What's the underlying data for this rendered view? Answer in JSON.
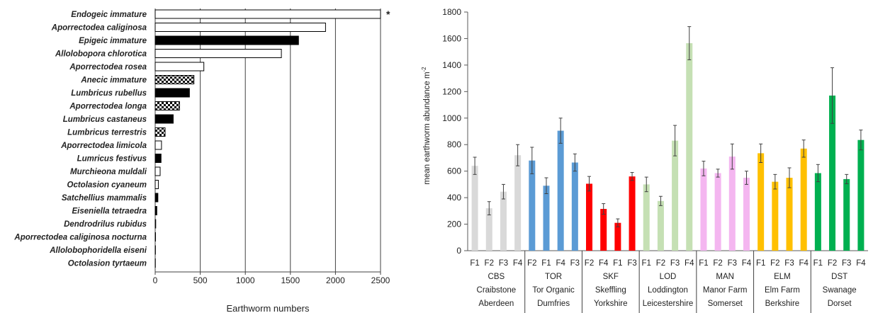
{
  "chart_data": [
    {
      "type": "bar",
      "orientation": "horizontal",
      "categories": [
        "Endogeic immature",
        "Aporrectodea caliginosa",
        "Epigeic immature",
        "Allolobopora chlorotica",
        "Aporrectodea rosea",
        "Anecic immature",
        "Lumbricus rubellus",
        "Aporrectodea longa",
        "Lumbricus castaneus",
        "Lumbricus terrestris",
        "Aporrectodea limicola",
        "Lumricus festivus",
        "Murchieona muldali",
        "Octolasion cyaneum",
        "Satchellius mammalis",
        "Eiseniella tetraedra",
        "Dendrodrilus rubidus",
        "Aporrectodea caliginosa nocturna",
        "Allolobophoridella eiseni",
        "Octolasion tyrtaeum"
      ],
      "values": [
        2500,
        1890,
        1590,
        1400,
        540,
        430,
        380,
        270,
        200,
        110,
        70,
        65,
        55,
        35,
        30,
        18,
        6,
        4,
        3,
        2
      ],
      "styles": [
        "white",
        "white",
        "black",
        "white",
        "white",
        "checker",
        "black",
        "checker",
        "black",
        "checker",
        "white",
        "black",
        "white",
        "white",
        "black",
        "black",
        "white",
        "white",
        "white",
        "white"
      ],
      "xlabel": "Earthworm numbers",
      "xlim": [
        0,
        2500
      ],
      "xticks": [
        "0",
        "500",
        "1000",
        "1500",
        "2000",
        "2500"
      ],
      "annotation": "*",
      "grid": "vertical"
    },
    {
      "type": "bar",
      "ylabel": "mean earthworm  abundance  m",
      "ylabel_superscript": "-2",
      "ylim": [
        0,
        1800
      ],
      "yticks": [
        "0",
        "200",
        "400",
        "600",
        "800",
        "1000",
        "1200",
        "1400",
        "1600",
        "1800"
      ],
      "groups": [
        {
          "code": "CBS",
          "name": "Craibstone",
          "region": "Aberdeen",
          "color": "#d9d9d9",
          "fields": [
            "F1",
            "F2",
            "F3",
            "F4"
          ],
          "values": [
            640,
            320,
            445,
            720
          ],
          "errors": [
            65,
            50,
            55,
            80
          ]
        },
        {
          "code": "TOR",
          "name": "Tor Organic",
          "region": "Dumfries",
          "color": "#5b9bd5",
          "fields": [
            "F2",
            "F1",
            "F4",
            "F3"
          ],
          "values": [
            680,
            490,
            905,
            665
          ],
          "errors": [
            100,
            60,
            95,
            65
          ]
        },
        {
          "code": "SKF",
          "name": "Skeffling",
          "region": "Yorkshire",
          "color": "#ff0000",
          "fields": [
            "F2",
            "F4",
            "F1",
            "F3"
          ],
          "values": [
            505,
            315,
            210,
            560
          ],
          "errors": [
            55,
            40,
            30,
            30
          ]
        },
        {
          "code": "LOD",
          "name": "Loddington",
          "region": "Leicestershire",
          "color": "#c5e0b4",
          "fields": [
            "F1",
            "F2",
            "F3",
            "F4"
          ],
          "values": [
            500,
            375,
            830,
            1565
          ],
          "errors": [
            55,
            35,
            115,
            125
          ]
        },
        {
          "code": "MAN",
          "name": "Manor Farm",
          "region": "Somerset",
          "color": "#f4b6f0",
          "fields": [
            "F1",
            "F2",
            "F3",
            "F4"
          ],
          "values": [
            620,
            585,
            710,
            550
          ],
          "errors": [
            55,
            30,
            95,
            50
          ]
        },
        {
          "code": "ELM",
          "name": "Elm Farm",
          "region": "Berkshire",
          "color": "#ffc000",
          "fields": [
            "F1",
            "F2",
            "F3",
            "F4"
          ],
          "values": [
            735,
            520,
            550,
            770
          ],
          "errors": [
            70,
            55,
            75,
            65
          ]
        },
        {
          "code": "DST",
          "name": "Swanage",
          "region": "Dorset",
          "color": "#00b050",
          "fields": [
            "F1",
            "F2",
            "F3",
            "F4"
          ],
          "values": [
            585,
            1170,
            540,
            835
          ],
          "errors": [
            65,
            210,
            35,
            75
          ]
        }
      ]
    }
  ]
}
